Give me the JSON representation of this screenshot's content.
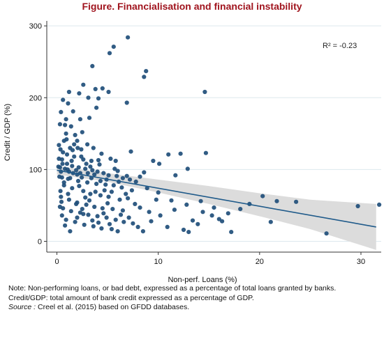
{
  "figure": {
    "title": "Figure. Financialisation and financial instability"
  },
  "notes": {
    "line1": "Note: Non-performing loans, or bad debt, expressed as a percentage of total loans granted by banks.",
    "line2": "Credit/GDP: total amount of bank credit expressed as a percentage of GDP.",
    "source_label": "Source :",
    "source_text": " Creel et al. (2015) based on GFDD databases."
  },
  "colors": {
    "title": "#a0141e",
    "points": "#1f4e79",
    "fit_line": "#1f5a8a",
    "confidence_band": "#dcdcdc",
    "gridline": "#dde8ee"
  },
  "chart_data": {
    "type": "scatter",
    "xlabel": "Non-perf. Loans (%)",
    "ylabel": "Credit / GDP (%)",
    "xlim": [
      -1,
      32
    ],
    "ylim": [
      -15,
      305
    ],
    "xticks": [
      0,
      10,
      20,
      30
    ],
    "yticks": [
      0,
      100,
      200,
      300
    ],
    "grid": true,
    "annotation": "R² = -0.23",
    "fit_line": {
      "x": [
        0,
        31.5
      ],
      "y": [
        99,
        20
      ]
    },
    "confidence_band": {
      "x": [
        0,
        5,
        10,
        15,
        20,
        25,
        31.5
      ],
      "lower": [
        93,
        83,
        68,
        52,
        35,
        17,
        -12
      ],
      "upper": [
        105,
        95,
        86,
        77,
        67,
        58,
        52
      ]
    },
    "points": [
      [
        7.0,
        284
      ],
      [
        5.6,
        271
      ],
      [
        8.8,
        237
      ],
      [
        3.5,
        244
      ],
      [
        8.6,
        229
      ],
      [
        5.2,
        262
      ],
      [
        2.6,
        218
      ],
      [
        3.8,
        212
      ],
      [
        4.5,
        213
      ],
      [
        5.1,
        208
      ],
      [
        1.2,
        208
      ],
      [
        2.2,
        206
      ],
      [
        3.1,
        200
      ],
      [
        4.1,
        199
      ],
      [
        14.6,
        208
      ],
      [
        6.9,
        193
      ],
      [
        3.9,
        186
      ],
      [
        0.6,
        197
      ],
      [
        1.1,
        192
      ],
      [
        0.4,
        180
      ],
      [
        1.6,
        181
      ],
      [
        0.9,
        170
      ],
      [
        2.3,
        170
      ],
      [
        3.2,
        172
      ],
      [
        0.3,
        163
      ],
      [
        0.8,
        162
      ],
      [
        1.4,
        160
      ],
      [
        2.5,
        152
      ],
      [
        1.8,
        148
      ],
      [
        0.7,
        140
      ],
      [
        2.0,
        140
      ],
      [
        3.0,
        135
      ],
      [
        0.2,
        134
      ],
      [
        1.3,
        130
      ],
      [
        2.4,
        128
      ],
      [
        1.0,
        121
      ],
      [
        1.7,
        118
      ],
      [
        0.5,
        114
      ],
      [
        2.6,
        114
      ],
      [
        3.4,
        112
      ],
      [
        4.1,
        113
      ],
      [
        5.3,
        115
      ],
      [
        5.8,
        112
      ],
      [
        7.3,
        125
      ],
      [
        9.5,
        112
      ],
      [
        10.1,
        108
      ],
      [
        11.0,
        121
      ],
      [
        12.2,
        122
      ],
      [
        14.7,
        123
      ],
      [
        0.3,
        103
      ],
      [
        0.8,
        101
      ],
      [
        1.2,
        97
      ],
      [
        1.9,
        99
      ],
      [
        2.3,
        95
      ],
      [
        2.8,
        101
      ],
      [
        3.5,
        99
      ],
      [
        4.0,
        97
      ],
      [
        4.6,
        95
      ],
      [
        5.1,
        92
      ],
      [
        5.9,
        91
      ],
      [
        6.5,
        88
      ],
      [
        7.2,
        86
      ],
      [
        8.2,
        90
      ],
      [
        8.6,
        96
      ],
      [
        11.7,
        92
      ],
      [
        12.9,
        101
      ],
      [
        0.5,
        89
      ],
      [
        1.1,
        87
      ],
      [
        2.1,
        84
      ],
      [
        3.0,
        82
      ],
      [
        3.9,
        80
      ],
      [
        4.8,
        79
      ],
      [
        5.6,
        78
      ],
      [
        6.4,
        75
      ],
      [
        7.4,
        71
      ],
      [
        0.7,
        78
      ],
      [
        1.5,
        74
      ],
      [
        2.6,
        70
      ],
      [
        3.3,
        66
      ],
      [
        4.3,
        64
      ],
      [
        5.1,
        62
      ],
      [
        6.2,
        58
      ],
      [
        7.0,
        60
      ],
      [
        10.0,
        68
      ],
      [
        0.4,
        62
      ],
      [
        1.2,
        58
      ],
      [
        2.0,
        54
      ],
      [
        2.9,
        51
      ],
      [
        3.7,
        48
      ],
      [
        4.5,
        46
      ],
      [
        5.5,
        45
      ],
      [
        6.5,
        43
      ],
      [
        8.2,
        47
      ],
      [
        11.3,
        57
      ],
      [
        11.6,
        44
      ],
      [
        0.6,
        46
      ],
      [
        1.4,
        42
      ],
      [
        2.3,
        40
      ],
      [
        3.1,
        37
      ],
      [
        4.0,
        35
      ],
      [
        4.9,
        33
      ],
      [
        5.8,
        30
      ],
      [
        6.6,
        27
      ],
      [
        7.5,
        25
      ],
      [
        0.9,
        30
      ],
      [
        1.8,
        27
      ],
      [
        2.7,
        23
      ],
      [
        3.6,
        21
      ],
      [
        4.4,
        18
      ],
      [
        5.4,
        17
      ],
      [
        6.0,
        14
      ],
      [
        8.5,
        14
      ],
      [
        10.9,
        20
      ],
      [
        12.5,
        16
      ],
      [
        13.0,
        13
      ],
      [
        13.4,
        29
      ],
      [
        14.4,
        41
      ],
      [
        15.3,
        36
      ],
      [
        16.0,
        31
      ],
      [
        17.2,
        13
      ],
      [
        18.1,
        45
      ],
      [
        20.3,
        63
      ],
      [
        21.1,
        27
      ],
      [
        21.7,
        56
      ],
      [
        23.6,
        55
      ],
      [
        26.6,
        11
      ],
      [
        29.7,
        49
      ],
      [
        31.8,
        51
      ],
      [
        9.3,
        28
      ],
      [
        10.2,
        36
      ],
      [
        12.8,
        51
      ],
      [
        14.2,
        56
      ],
      [
        15.5,
        47
      ],
      [
        16.9,
        39
      ],
      [
        19.0,
        52
      ],
      [
        0.25,
        90
      ],
      [
        0.35,
        70
      ],
      [
        0.45,
        55
      ],
      [
        0.6,
        124
      ],
      [
        1.0,
        108
      ],
      [
        1.6,
        95
      ],
      [
        2.2,
        77
      ],
      [
        2.8,
        61
      ],
      [
        3.4,
        88
      ],
      [
        4.2,
        107
      ],
      [
        4.7,
        71
      ],
      [
        5.0,
        53
      ],
      [
        5.7,
        101
      ],
      [
        6.1,
        83
      ],
      [
        6.8,
        66
      ],
      [
        7.7,
        52
      ],
      [
        8.9,
        74
      ],
      [
        9.8,
        58
      ],
      [
        0.9,
        150
      ],
      [
        1.7,
        135
      ],
      [
        2.4,
        118
      ],
      [
        3.6,
        130
      ],
      [
        4.4,
        122
      ],
      [
        0.2,
        115
      ],
      [
        0.3,
        48
      ],
      [
        0.5,
        36
      ],
      [
        0.8,
        22
      ],
      [
        1.3,
        14
      ],
      [
        2.0,
        33
      ],
      [
        2.5,
        45
      ],
      [
        3.2,
        57
      ],
      [
        3.8,
        69
      ],
      [
        4.6,
        39
      ],
      [
        5.2,
        24
      ],
      [
        6.3,
        37
      ],
      [
        7.1,
        33
      ],
      [
        8.0,
        20
      ],
      [
        9.1,
        41
      ],
      [
        13.9,
        24
      ],
      [
        16.3,
        28
      ],
      [
        0.4,
        97
      ],
      [
        1.5,
        105
      ],
      [
        2.9,
        108
      ],
      [
        3.3,
        104
      ],
      [
        4.9,
        86
      ],
      [
        6.0,
        98
      ],
      [
        6.9,
        91
      ],
      [
        7.8,
        83
      ],
      [
        1.1,
        66
      ],
      [
        1.9,
        52
      ],
      [
        2.6,
        38
      ],
      [
        3.5,
        29
      ],
      [
        4.1,
        26
      ],
      [
        0.7,
        82
      ],
      [
        1.3,
        88
      ],
      [
        2.0,
        93
      ],
      [
        3.7,
        93
      ],
      [
        4.3,
        84
      ],
      [
        5.4,
        69
      ],
      [
        0.15,
        104
      ],
      [
        0.55,
        108
      ],
      [
        1.05,
        100
      ],
      [
        1.45,
        112
      ],
      [
        2.15,
        103
      ],
      [
        2.45,
        89
      ],
      [
        3.05,
        95
      ],
      [
        0.35,
        128
      ],
      [
        0.95,
        142
      ],
      [
        1.55,
        127
      ],
      [
        2.05,
        130
      ]
    ]
  }
}
